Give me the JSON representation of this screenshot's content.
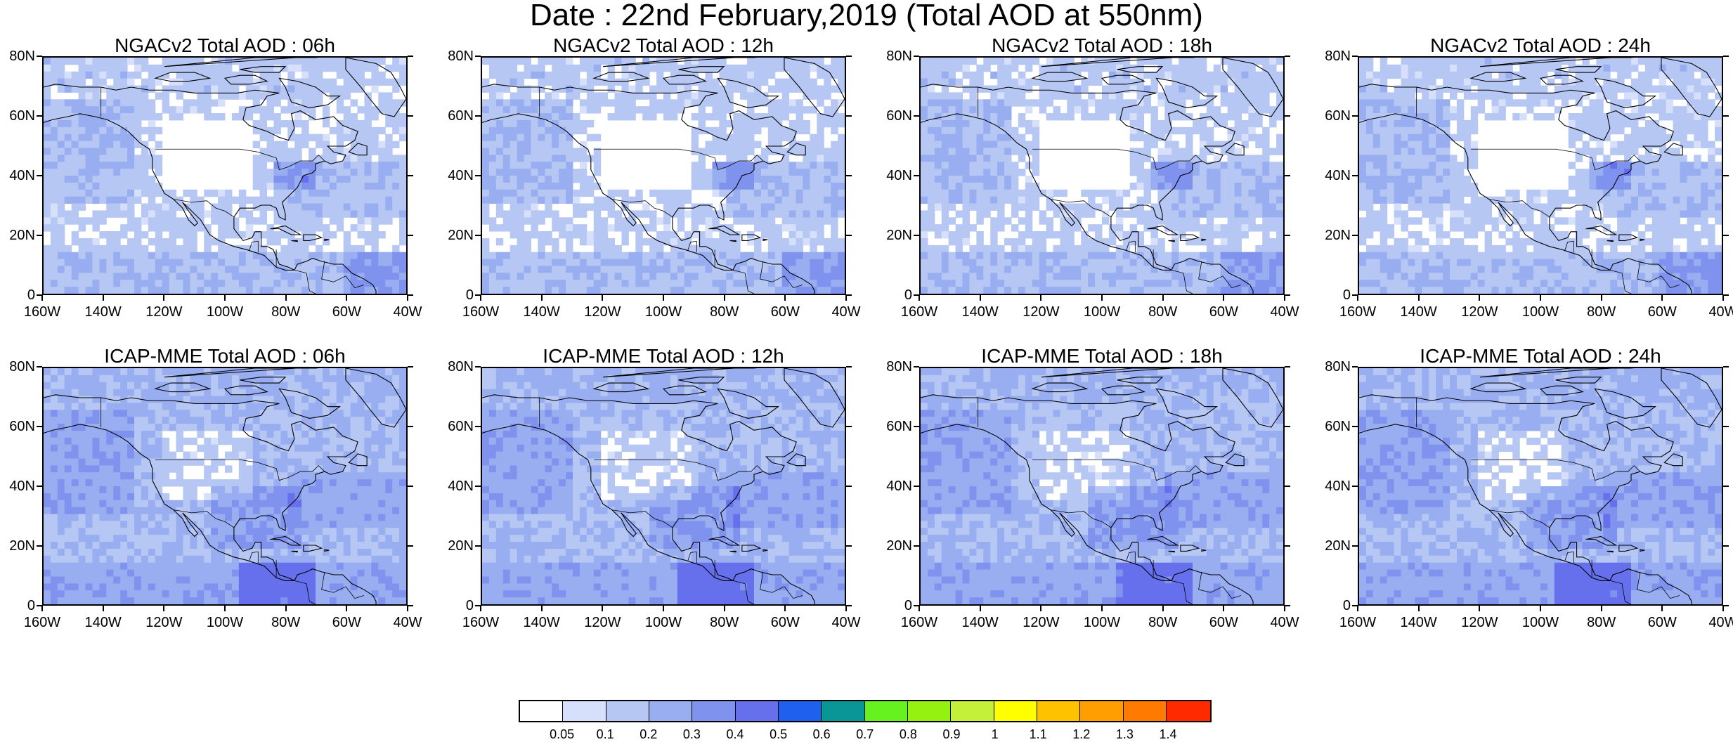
{
  "figure": {
    "title": "Date : 22nd February,2019 (Total AOD at 550nm)"
  },
  "axes": {
    "y_ticks": [
      "80N",
      "60N",
      "40N",
      "20N",
      "0"
    ],
    "x_ticks": [
      "160W",
      "140W",
      "120W",
      "100W",
      "80W",
      "60W",
      "40W"
    ],
    "lon_range": [
      -160,
      -40
    ],
    "lat_range": [
      0,
      80
    ]
  },
  "panels": [
    {
      "id": "ngac-06h",
      "title": "NGACv2 Total AOD : 06h"
    },
    {
      "id": "ngac-12h",
      "title": "NGACv2 Total AOD : 12h"
    },
    {
      "id": "ngac-18h",
      "title": "NGACv2 Total AOD : 18h"
    },
    {
      "id": "ngac-24h",
      "title": "NGACv2 Total AOD : 24h"
    },
    {
      "id": "icap-06h",
      "title": "ICAP-MME Total AOD : 06h"
    },
    {
      "id": "icap-12h",
      "title": "ICAP-MME Total AOD : 12h"
    },
    {
      "id": "icap-18h",
      "title": "ICAP-MME Total AOD : 18h"
    },
    {
      "id": "icap-24h",
      "title": "ICAP-MME Total AOD : 24h"
    }
  ],
  "colorbar": {
    "labels": [
      "0.05",
      "0.1",
      "0.2",
      "0.3",
      "0.4",
      "0.5",
      "0.6",
      "0.7",
      "0.8",
      "0.9",
      "1",
      "1.1",
      "1.2",
      "1.3",
      "1.4"
    ],
    "colors": [
      "#ffffff",
      "#d6e0fa",
      "#b6c7f4",
      "#98aef1",
      "#7f93ee",
      "#6670ed",
      "#1f60ee",
      "#0a9696",
      "#66f21e",
      "#95f210",
      "#c4f03a",
      "#ffff00",
      "#ffc200",
      "#ff9e00",
      "#ff7a00",
      "#ff2a00"
    ]
  }
}
